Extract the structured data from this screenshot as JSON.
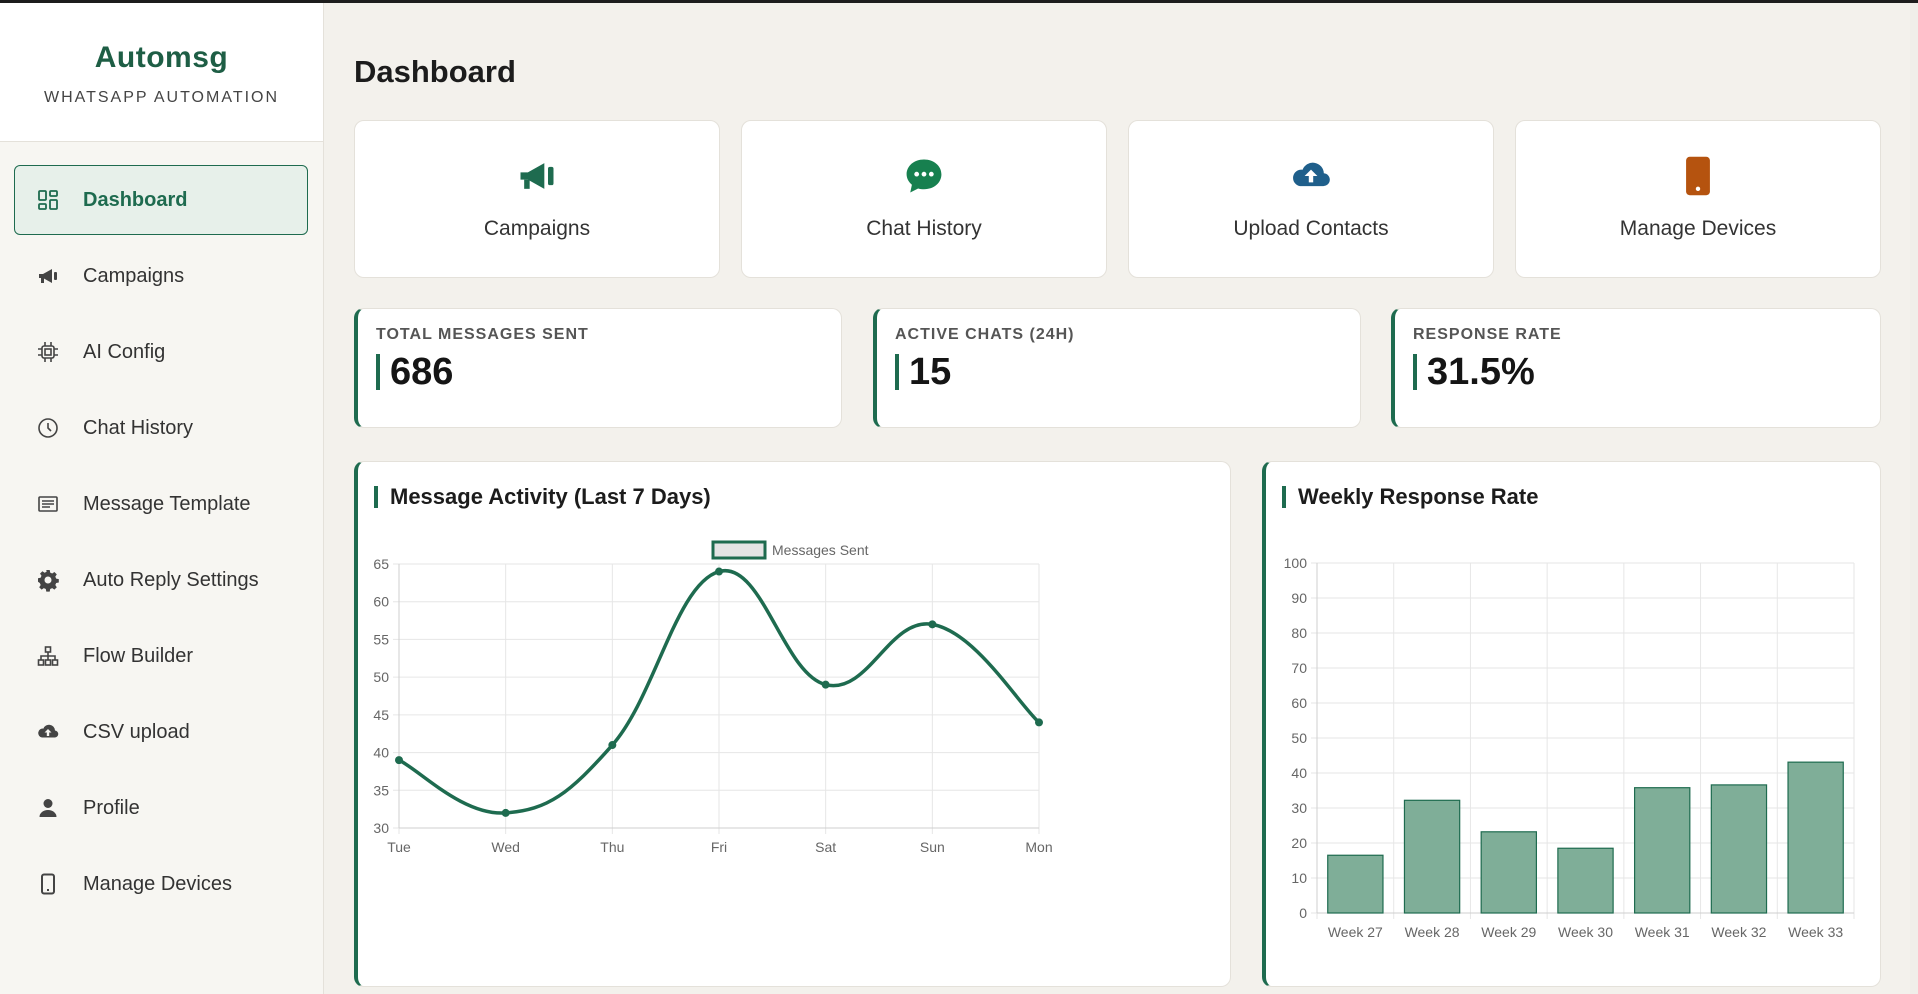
{
  "brand": {
    "name": "Automsg",
    "subtitle": "WHATSAPP AUTOMATION"
  },
  "sidebar": {
    "items": [
      {
        "label": "Dashboard",
        "icon": "grid-icon",
        "active": true
      },
      {
        "label": "Campaigns",
        "icon": "megaphone-icon"
      },
      {
        "label": "AI Config",
        "icon": "chip-icon"
      },
      {
        "label": "Chat History",
        "icon": "clock-icon"
      },
      {
        "label": "Message Template",
        "icon": "template-icon"
      },
      {
        "label": "Auto Reply Settings",
        "icon": "gear-icon"
      },
      {
        "label": "Flow Builder",
        "icon": "sitemap-icon"
      },
      {
        "label": "CSV upload",
        "icon": "cloud-upload-icon"
      },
      {
        "label": "Profile",
        "icon": "user-icon"
      },
      {
        "label": "Manage Devices",
        "icon": "phone-icon"
      }
    ]
  },
  "page": {
    "title": "Dashboard"
  },
  "quick_actions": [
    {
      "label": "Campaigns",
      "icon": "megaphone-icon",
      "color": "#1e6b4f"
    },
    {
      "label": "Chat History",
      "icon": "chat-bubble-icon",
      "color": "#17804f"
    },
    {
      "label": "Upload Contacts",
      "icon": "cloud-upload-icon",
      "color": "#1f5f8b"
    },
    {
      "label": "Manage Devices",
      "icon": "phone-icon",
      "color": "#b5530f"
    }
  ],
  "stats": [
    {
      "label": "TOTAL MESSAGES SENT",
      "value": "686"
    },
    {
      "label": "ACTIVE CHATS (24H)",
      "value": "15"
    },
    {
      "label": "RESPONSE RATE",
      "value": "31.5%"
    }
  ],
  "colors": {
    "accent": "#1e6b4f",
    "bar_fill": "#7fae98",
    "background": "#f3f1ec"
  },
  "chart_data": [
    {
      "type": "line",
      "title": "Message Activity (Last 7 Days)",
      "categories": [
        "Tue",
        "Wed",
        "Thu",
        "Fri",
        "Sat",
        "Sun",
        "Mon"
      ],
      "series": [
        {
          "name": "Messages Sent",
          "values": [
            39,
            32,
            41,
            64,
            49,
            57,
            44
          ]
        }
      ],
      "ylim": [
        30,
        65
      ],
      "yticks": [
        30,
        35,
        40,
        45,
        50,
        55,
        60,
        65
      ],
      "grid": true,
      "legend": "top-center"
    },
    {
      "type": "bar",
      "title": "Weekly Response Rate",
      "categories": [
        "Week 27",
        "Week 28",
        "Week 29",
        "Week 30",
        "Week 31",
        "Week 32",
        "Week 33"
      ],
      "values": [
        16.5,
        32.2,
        23.2,
        18.5,
        35.8,
        36.6,
        43.1
      ],
      "ylim": [
        0,
        100
      ],
      "yticks": [
        0,
        10,
        20,
        30,
        40,
        50,
        60,
        70,
        80,
        90,
        100
      ],
      "grid": true
    }
  ]
}
